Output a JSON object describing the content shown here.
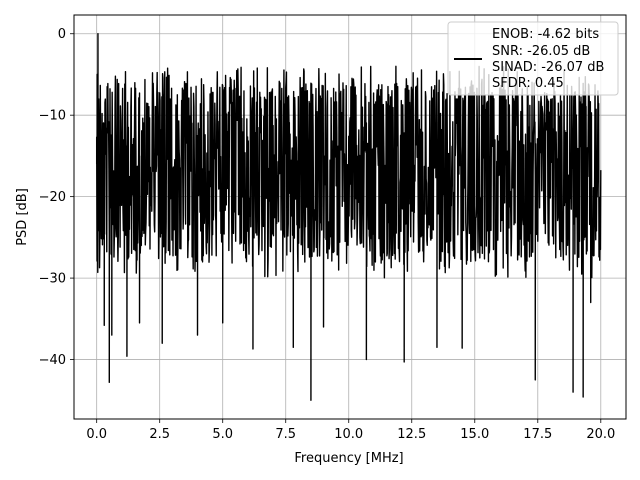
{
  "chart_data": {
    "type": "line",
    "xlabel": "Frequency [MHz]",
    "ylabel": "PSD [dB]",
    "xlim": [
      -0.9,
      21.0
    ],
    "ylim": [
      -47.3,
      2.3
    ],
    "xticks": [
      0.0,
      2.5,
      5.0,
      7.5,
      10.0,
      12.5,
      15.0,
      17.5,
      20.0
    ],
    "xtick_labels": [
      "0.0",
      "2.5",
      "5.0",
      "7.5",
      "10.0",
      "12.5",
      "15.0",
      "17.5",
      "20.0"
    ],
    "yticks": [
      0,
      -10,
      -20,
      -30,
      -40
    ],
    "ytick_labels": [
      "0",
      "−10",
      "−20",
      "−30",
      "−40"
    ],
    "grid": true,
    "legend_position": "top-right",
    "series": [
      {
        "color": "#000000",
        "x_range": [
          0.0,
          20.0
        ],
        "peak": {
          "x": 0.05,
          "y": 0.0
        },
        "typical_upper_envelope": -6,
        "typical_lower_envelope": -28,
        "deep_nulls": [
          {
            "x": 0.3,
            "y": -35.8
          },
          {
            "x": 0.5,
            "y": -42.8
          },
          {
            "x": 0.6,
            "y": -37.0
          },
          {
            "x": 1.2,
            "y": -39.6
          },
          {
            "x": 1.7,
            "y": -35.5
          },
          {
            "x": 2.6,
            "y": -38.0
          },
          {
            "x": 4.0,
            "y": -37.0
          },
          {
            "x": 5.0,
            "y": -35.5
          },
          {
            "x": 6.2,
            "y": -38.7
          },
          {
            "x": 7.8,
            "y": -38.5
          },
          {
            "x": 8.5,
            "y": -45.0
          },
          {
            "x": 9.0,
            "y": -36.0
          },
          {
            "x": 10.7,
            "y": -40.0
          },
          {
            "x": 12.2,
            "y": -40.3
          },
          {
            "x": 13.5,
            "y": -38.5
          },
          {
            "x": 14.5,
            "y": -38.6
          },
          {
            "x": 17.4,
            "y": -42.5
          },
          {
            "x": 18.9,
            "y": -44.0
          },
          {
            "x": 19.3,
            "y": -44.6
          },
          {
            "x": 19.6,
            "y": -33.0
          }
        ]
      }
    ],
    "legend_lines": [
      "ENOB: -4.62 bits",
      "SNR: -26.05 dB",
      "SINAD: -26.07 dB",
      "SFDR: 0.45"
    ]
  }
}
